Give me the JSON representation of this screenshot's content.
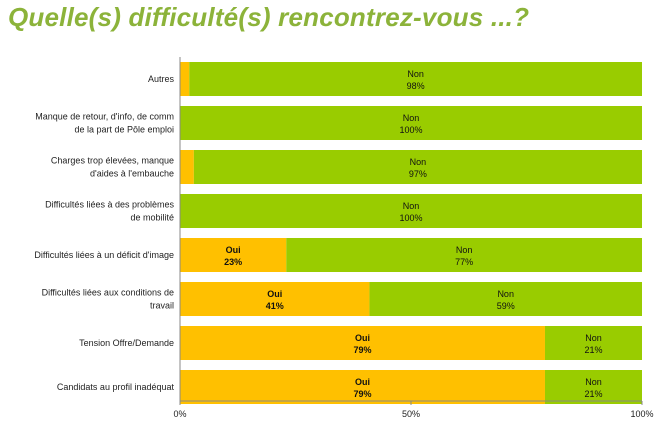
{
  "page": {
    "title": "Quelle(s) difficulté(s) rencontrez-vous ...?"
  },
  "chart_data": {
    "type": "bar",
    "orientation": "horizontal",
    "stacked": true,
    "percent_scale": true,
    "title": "Quelle(s) difficulté(s) rencontrez-vous ...?",
    "xlabel": "",
    "ylabel": "",
    "xlim": [
      0,
      100
    ],
    "x_ticks": [
      "0%",
      "50%",
      "100%"
    ],
    "grid": false,
    "legend": "none",
    "categories": [
      [
        "Autres"
      ],
      [
        "Manque de retour, d'info, de comm",
        "de la part de Pôle emploi"
      ],
      [
        "Charges trop élevées, manque",
        "d'aides à l'embauche"
      ],
      [
        "Difficultés liées à des problèmes",
        "de mobilité"
      ],
      [
        "Difficultés liées à un déficit d'image"
      ],
      [
        "Difficultés liées aux conditions de",
        "travail"
      ],
      [
        "Tension Offre/Demande"
      ],
      [
        "Candidats au profil inadéquat"
      ]
    ],
    "series": [
      {
        "name": "Oui",
        "color": "#ffc000",
        "values": [
          2,
          0,
          3,
          0,
          23,
          41,
          79,
          79
        ],
        "labels": [
          "",
          "",
          "",
          "",
          "Oui\n23%",
          "Oui\n41%",
          "Oui\n79%",
          "Oui\n79%"
        ]
      },
      {
        "name": "Non",
        "color": "#99cc00",
        "values": [
          98,
          100,
          97,
          100,
          77,
          59,
          21,
          21
        ],
        "labels": [
          "Non\n98%",
          "Non\n100%",
          "Non\n97%",
          "Non\n100%",
          "Non\n77%",
          "Non\n59%",
          "Non\n21%",
          "Non\n21%"
        ]
      }
    ]
  }
}
